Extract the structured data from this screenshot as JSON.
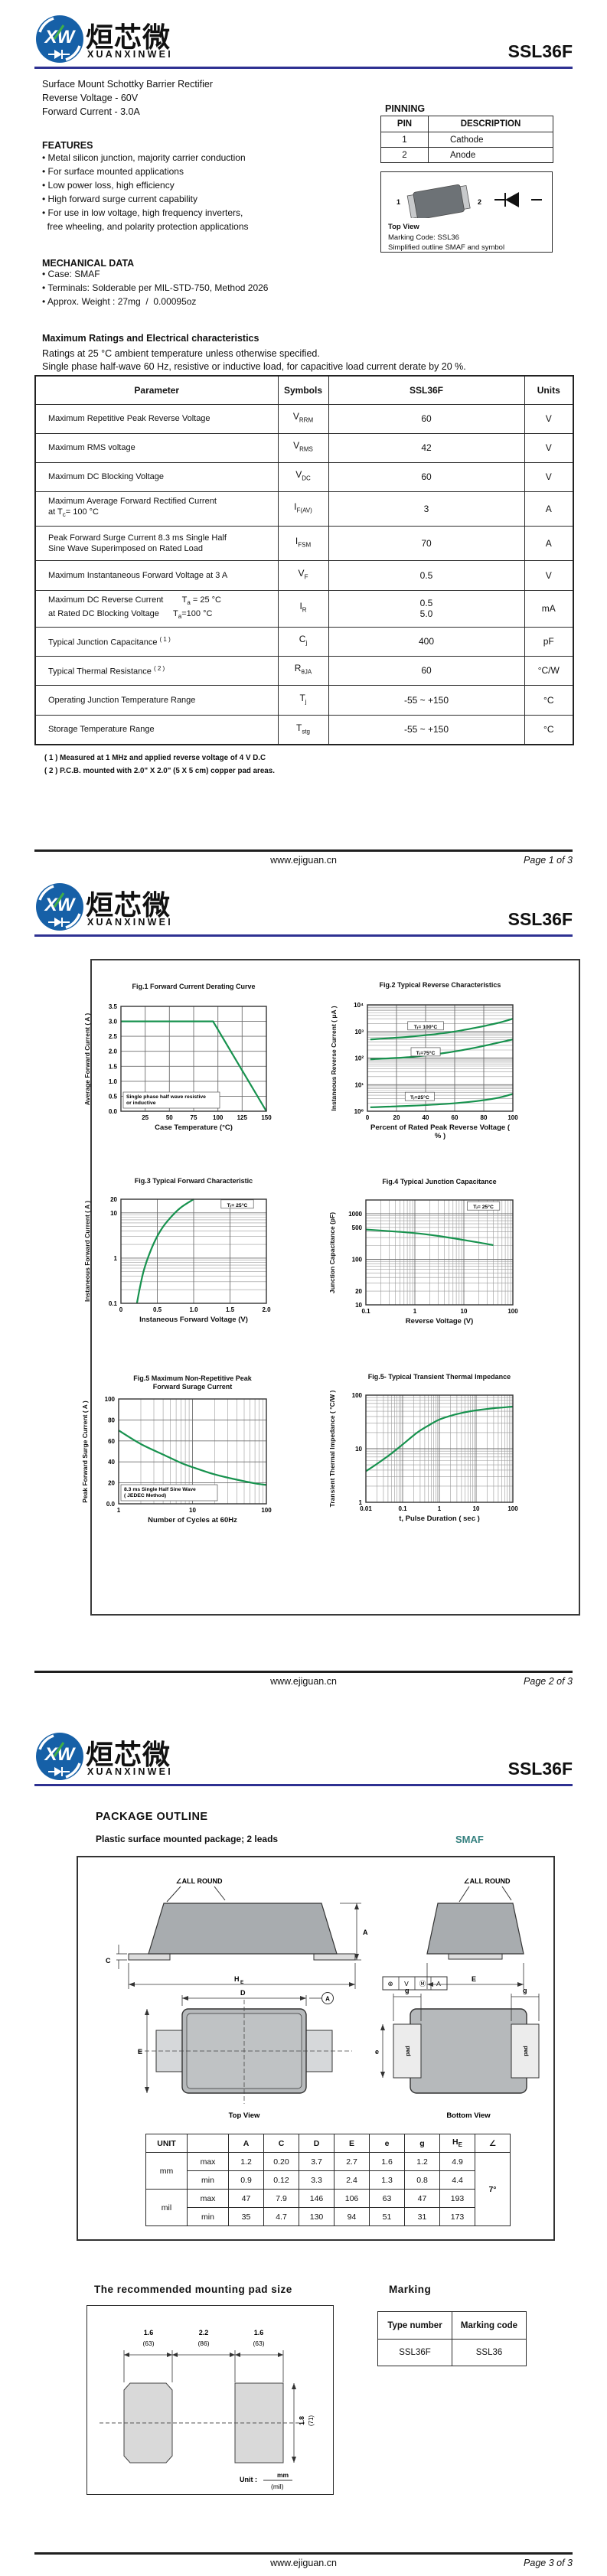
{
  "colors": {
    "header_rule_blue": "#2e3192",
    "logo_blue": "#1660a7",
    "logo_green": "#3fae49",
    "chart_curve_green": "#17924e",
    "smaf_teal": "#35807f"
  },
  "brand": {
    "logo_mark": "XW",
    "logo_text_cn": "烜芯微",
    "logo_text_en": "XUANXINWEI",
    "part_number": "SSL36F"
  },
  "page1": {
    "desc_lines": [
      "Surface Mount Schottky Barrier Rectifier",
      "Reverse Voltage - 60V",
      "Forward Current - 3.0A"
    ],
    "features": {
      "title": "FEATURES",
      "items": [
        {
          "text": "Metal silicon junction, majority carrier conduction",
          "bullet": true
        },
        {
          "text": "For surface mounted applications",
          "bullet": true
        },
        {
          "text": "Low power loss, high efficiency",
          "bullet": true
        },
        {
          "text": "High forward surge current capability",
          "bullet": true
        },
        {
          "text": "For use in low voltage, high frequency inverters,",
          "bullet": true
        },
        {
          "text": "free wheeling, and polarity protection applications",
          "bullet": false
        }
      ]
    },
    "mechanical": {
      "title": "MECHANICAL DATA",
      "items": [
        {
          "text": "Case: SMAF",
          "bullet": true
        },
        {
          "text": "Terminals: Solderable per MIL-STD-750, Method 2026",
          "bullet": true
        },
        {
          "text": "Approx. Weight : 27mg  /  0.00095oz",
          "bullet": true
        }
      ]
    },
    "pinning": {
      "title": "PINNING",
      "headers": [
        "PIN",
        "DESCRIPTION"
      ],
      "rows": [
        [
          "1",
          "Cathode"
        ],
        [
          "2",
          "Anode"
        ]
      ]
    },
    "package_box": {
      "pin1": "1",
      "pin2": "2",
      "captions": [
        "Top View",
        "Marking Code: SSL36",
        "Simplified outline SMAF and symbol"
      ]
    },
    "ratings": {
      "title": "Maximum Ratings and Electrical characteristics",
      "subtitle1": "Ratings at 25 °C ambient temperature unless otherwise specified.",
      "subtitle2": "Single phase half-wave 60 Hz, resistive or inductive load, for capacitive load current derate by 20 %.",
      "headers": [
        "Parameter",
        "Symbols",
        "SSL36F",
        "Units"
      ],
      "rows": [
        {
          "param": [
            "Maximum Repetitive Peak Reverse Voltage"
          ],
          "symbol": "V_{RRM}",
          "values": [
            "60"
          ],
          "unit": "V"
        },
        {
          "param": [
            "Maximum RMS voltage"
          ],
          "symbol": "V_{RMS}",
          "values": [
            "42"
          ],
          "unit": "V"
        },
        {
          "param": [
            "Maximum DC Blocking Voltage"
          ],
          "symbol": "V_{DC}",
          "values": [
            "60"
          ],
          "unit": "V"
        },
        {
          "param": [
            "Maximum Average Forward Rectified Current",
            "at T_{c}= 100 °C"
          ],
          "symbol": "I_{F(AV)}",
          "values": [
            "3"
          ],
          "unit": "A"
        },
        {
          "param": [
            "Peak Forward Surge Current 8.3 ms Single Half",
            "Sine Wave Superimposed on Rated Load"
          ],
          "symbol": "I_{FSM}",
          "values": [
            "70"
          ],
          "unit": "A"
        },
        {
          "param": [
            "Maximum Instantaneous Forward Voltage at 3 A"
          ],
          "symbol": "V_{F}",
          "values": [
            "0.5"
          ],
          "unit": "V"
        },
        {
          "param": [
            "Maximum DC Reverse Current        T_{a} = 25 °C",
            "at Rated DC Blocking Voltage      T_{a}=100 °C"
          ],
          "symbol": "I_{R}",
          "values": [
            "0.5",
            "5.0"
          ],
          "unit": "mA"
        },
        {
          "param": [
            "Typical Junction Capacitance ^{( 1 )}"
          ],
          "symbol": "C_{j}",
          "values": [
            "400"
          ],
          "unit": "pF"
        },
        {
          "param": [
            "Typical Thermal Resistance ^{( 2 )}"
          ],
          "symbol": "R_{θJA}",
          "values": [
            "60"
          ],
          "unit": "°C/W"
        },
        {
          "param": [
            "Operating Junction Temperature Range"
          ],
          "symbol": "T_{j}",
          "values": [
            "-55 ~ +150"
          ],
          "unit": "°C"
        },
        {
          "param": [
            "Storage Temperature Range"
          ],
          "symbol": "T_{stg}",
          "values": [
            "-55 ~ +150"
          ],
          "unit": "°C"
        }
      ],
      "notes": [
        "( 1 ) Measured at 1 MHz and applied reverse voltage of 4 V D.C",
        "( 2 ) P.C.B. mounted with 2.0\" X 2.0\" (5 X 5 cm) copper pad areas."
      ]
    },
    "footer": {
      "site": "www.ejiguan.cn",
      "page": "Page 1 of 3"
    }
  },
  "page2": {
    "footer": {
      "site": "www.ejiguan.cn",
      "page": "Page 2 of 3"
    }
  },
  "chart_data": [
    {
      "id": "fig1",
      "type": "line",
      "title_lines": [
        "Fig.1  Forward Current Derating Curve"
      ],
      "xlabel": "Case  Temperature (°C)",
      "ylabel": "Average Forward Current ( A )",
      "x_axis": {
        "type": "linear",
        "min": 0,
        "max": 150
      },
      "x_ticks": [
        25,
        50,
        75,
        100,
        125,
        150
      ],
      "x_tick_labels": [
        "25",
        "50",
        "75",
        "100",
        "125",
        "150"
      ],
      "y_axis": {
        "type": "linear",
        "min": 0,
        "max": 3.5
      },
      "y_ticks": [
        0,
        0.5,
        1,
        1.5,
        2,
        2.5,
        3,
        3.5
      ],
      "y_tick_labels": [
        "0.0",
        "0.5",
        "1.0",
        "1.5",
        "2.0",
        "2.5",
        "3.0",
        "3.5"
      ],
      "series": [
        {
          "name": "forward-current-derating",
          "smooth": false,
          "points": [
            [
              0,
              3.0
            ],
            [
              95,
              3.0
            ],
            [
              150,
              0
            ]
          ]
        }
      ],
      "note_lines": [
        "Single phase half wave resistive",
        "or inductive"
      ]
    },
    {
      "id": "fig2",
      "type": "line",
      "title_lines": [
        "Fig.2  Typical Reverse Characteristics"
      ],
      "xlabel": "Percent of Rated Peak Reverse Voltage ( % )",
      "ylabel": "Instaneous Reverse Current ( μA )",
      "x_axis": {
        "type": "linear",
        "min": 0,
        "max": 100
      },
      "x_ticks": [
        0,
        20,
        40,
        60,
        80,
        100
      ],
      "x_tick_labels": [
        "0",
        "20",
        "40",
        "60",
        "80",
        "100"
      ],
      "y_axis": {
        "type": "log",
        "min": 1,
        "max": 10000
      },
      "y_ticks": [
        1,
        10,
        100,
        1000,
        10000
      ],
      "y_tick_labels": [
        "10⁰",
        "10¹",
        "10²",
        "10³",
        "10⁴"
      ],
      "series": [
        {
          "name": "Tj=100C",
          "smooth": true,
          "points": [
            [
              2,
              500
            ],
            [
              30,
              640
            ],
            [
              55,
              900
            ],
            [
              75,
              1400
            ],
            [
              90,
              2100
            ],
            [
              100,
              3000
            ]
          ]
        },
        {
          "name": "Tj=75C",
          "smooth": true,
          "points": [
            [
              2,
              90
            ],
            [
              30,
              110
            ],
            [
              55,
              160
            ],
            [
              75,
              250
            ],
            [
              90,
              380
            ],
            [
              100,
              500
            ]
          ]
        },
        {
          "name": "Tj=25C",
          "smooth": true,
          "points": [
            [
              2,
              1.4
            ],
            [
              30,
              1.6
            ],
            [
              55,
              1.9
            ],
            [
              75,
              2.4
            ],
            [
              90,
              3.2
            ],
            [
              100,
              4.5
            ]
          ]
        }
      ],
      "series_labels": [
        {
          "text": "Tⱼ= 100°C",
          "fx": 0.4,
          "fy": 0.2
        },
        {
          "text": "Tⱼ=75°C",
          "fx": 0.4,
          "fy": 0.445
        },
        {
          "text": "Tⱼ=25°C",
          "fx": 0.36,
          "fy": 0.865
        }
      ]
    },
    {
      "id": "fig3",
      "type": "line",
      "title_lines": [
        "Fig.3  Typical Forward Characteristic"
      ],
      "xlabel": "Instaneous Forward Voltage (V)",
      "ylabel": "Instaneous Forward Current ( A )",
      "x_axis": {
        "type": "linear",
        "min": 0,
        "max": 2
      },
      "x_ticks": [
        0,
        0.5,
        1,
        1.5,
        2
      ],
      "x_tick_labels": [
        "0",
        "0.5",
        "1.0",
        "1.5",
        "2.0"
      ],
      "y_axis": {
        "type": "log",
        "min": 0.1,
        "max": 20
      },
      "y_ticks": [
        0.1,
        1,
        10,
        20
      ],
      "y_tick_labels": [
        "0.1",
        "1",
        "10",
        "20"
      ],
      "series": [
        {
          "name": "Tj=25C",
          "smooth": true,
          "points": [
            [
              0.22,
              0.1
            ],
            [
              0.26,
              0.22
            ],
            [
              0.31,
              0.5
            ],
            [
              0.37,
              1.0
            ],
            [
              0.45,
              2.1
            ],
            [
              0.55,
              4.2
            ],
            [
              0.67,
              7.5
            ],
            [
              0.82,
              13
            ],
            [
              1.0,
              20
            ]
          ]
        }
      ],
      "series_labels": [
        {
          "text": "Tⱼ= 25°C",
          "fx": 0.8,
          "fy": 0.05
        }
      ]
    },
    {
      "id": "fig4",
      "type": "line",
      "title_lines": [
        "Fig.4  Typical Junction Capacitance"
      ],
      "xlabel": "Reverse  Voltage (V)",
      "ylabel": "Junction Capacitance (pF)",
      "x_axis": {
        "type": "log",
        "min": 0.1,
        "max": 100
      },
      "x_ticks": [
        0.1,
        1,
        10,
        100
      ],
      "x_tick_labels": [
        "0.1",
        "1",
        "10",
        "100"
      ],
      "y_axis": {
        "type": "log",
        "min": 10,
        "max": 2000
      },
      "y_ticks": [
        10,
        20,
        100,
        500,
        1000
      ],
      "y_tick_labels": [
        "10",
        "20",
        "100",
        "500",
        "1000"
      ],
      "series": [
        {
          "name": "Tj=25C",
          "smooth": true,
          "points": [
            [
              0.1,
              450
            ],
            [
              0.3,
              415
            ],
            [
              1,
              375
            ],
            [
              3,
              325
            ],
            [
              10,
              265
            ],
            [
              40,
              205
            ]
          ]
        }
      ],
      "series_labels": [
        {
          "text": "Tⱼ= 25°C",
          "fx": 0.8,
          "fy": 0.06
        }
      ]
    },
    {
      "id": "fig5",
      "type": "line",
      "title_lines": [
        "Fig.5  Maximum Non-Repetitive Peak",
        "Forward Surage Current"
      ],
      "xlabel": "Number of Cycles at 60Hz",
      "ylabel": "Peak Forward Surge Current ( A )",
      "x_axis": {
        "type": "log",
        "min": 1,
        "max": 100
      },
      "x_ticks": [
        1,
        10,
        100
      ],
      "x_tick_labels": [
        "1",
        "10",
        "100"
      ],
      "y_axis": {
        "type": "linear",
        "min": 0,
        "max": 100
      },
      "y_ticks": [
        0,
        20,
        40,
        60,
        80,
        100
      ],
      "y_tick_labels": [
        "0.0",
        "20",
        "40",
        "60",
        "80",
        "100"
      ],
      "series": [
        {
          "name": "surge-current",
          "smooth": true,
          "points": [
            [
              1,
              70
            ],
            [
              2,
              57
            ],
            [
              4,
              47
            ],
            [
              7,
              39
            ],
            [
              10,
              35
            ],
            [
              20,
              28
            ],
            [
              40,
              23
            ],
            [
              70,
              19.5
            ],
            [
              100,
              18
            ]
          ]
        }
      ],
      "note_lines": [
        "8.3 ms Single Half Sine Wave",
        "( JEDEC Method)"
      ]
    },
    {
      "id": "fig6",
      "type": "line",
      "title_lines": [
        "Fig.5- Typical Transient Thermal Impedance"
      ],
      "xlabel": "t, Pulse Duration ( sec )",
      "ylabel": "Transient Thermal Impedance ( °C/W )",
      "x_axis": {
        "type": "log",
        "min": 0.01,
        "max": 100
      },
      "x_ticks": [
        0.01,
        0.1,
        1,
        10,
        100
      ],
      "x_tick_labels": [
        "0.01",
        "0.1",
        "1",
        "10",
        "100"
      ],
      "y_axis": {
        "type": "log",
        "min": 1,
        "max": 100
      },
      "y_ticks": [
        1,
        10,
        100
      ],
      "y_tick_labels": [
        "1",
        "10",
        "100"
      ],
      "series": [
        {
          "name": "transient-thermal-impedance",
          "smooth": true,
          "points": [
            [
              0.01,
              3.8
            ],
            [
              0.02,
              5.2
            ],
            [
              0.05,
              8.2
            ],
            [
              0.1,
              12
            ],
            [
              0.25,
              20
            ],
            [
              0.5,
              27
            ],
            [
              1,
              35
            ],
            [
              2.5,
              43
            ],
            [
              5,
              48
            ],
            [
              10,
              52
            ],
            [
              30,
              57
            ],
            [
              100,
              61
            ]
          ]
        }
      ]
    }
  ],
  "page3": {
    "outline": {
      "title": "PACKAGE  OUTLINE",
      "subtitle": "Plastic surface mounted package; 2 leads",
      "package_name": "SMAF",
      "labels": {
        "all_round": "∠ALL ROUND",
        "dim_a": "A",
        "dim_c": "C",
        "he_base": "H",
        "he_sub": "E",
        "dim_e": "E",
        "dim_d": "D",
        "dim_g": "g",
        "dim_e_small": "e",
        "pad": "pad",
        "top_view": "Top View",
        "bottom_view": "Bottom  View",
        "datum_a": "A"
      },
      "datum": [
        "⊕",
        "V",
        "Ⓜ",
        "A"
      ],
      "dims": {
        "unit_label": "UNIT",
        "columns": [
          "A",
          "C",
          "D",
          "E",
          "e",
          "g",
          "H_{E}",
          "∠"
        ],
        "rows": [
          {
            "unit": "mm",
            "minmax": "max",
            "values": [
              "1.2",
              "0.20",
              "3.7",
              "2.7",
              "1.6",
              "1.2",
              "4.9"
            ]
          },
          {
            "unit": "mm",
            "minmax": "min",
            "values": [
              "0.9",
              "0.12",
              "3.3",
              "2.4",
              "1.3",
              "0.8",
              "4.4"
            ]
          },
          {
            "unit": "mil",
            "minmax": "max",
            "values": [
              "47",
              "7.9",
              "146",
              "106",
              "63",
              "47",
              "193"
            ]
          },
          {
            "unit": "mil",
            "minmax": "min",
            "values": [
              "35",
              "4.7",
              "130",
              "94",
              "51",
              "31",
              "173"
            ]
          }
        ],
        "angle": "7°"
      }
    },
    "pad_section": {
      "title": "The recommended mounting pad size",
      "dim_left_mm": "1.6",
      "dim_left_mil": "(63)",
      "dim_mid_mm": "2.2",
      "dim_mid_mil": "(86)",
      "dim_right_mm": "1.6",
      "dim_right_mil": "(63)",
      "dim_h_mm": "1.8",
      "dim_h_mil": "(71)",
      "unit_prefix": "Unit :",
      "unit_num": "mm",
      "unit_den": "(mil)"
    },
    "marking": {
      "title": "Marking",
      "headers": [
        "Type number",
        "Marking code"
      ],
      "type_number": "SSL36F",
      "marking_code": "SSL36"
    },
    "footer": {
      "site": "www.ejiguan.cn",
      "page": "Page 3 of 3"
    }
  }
}
